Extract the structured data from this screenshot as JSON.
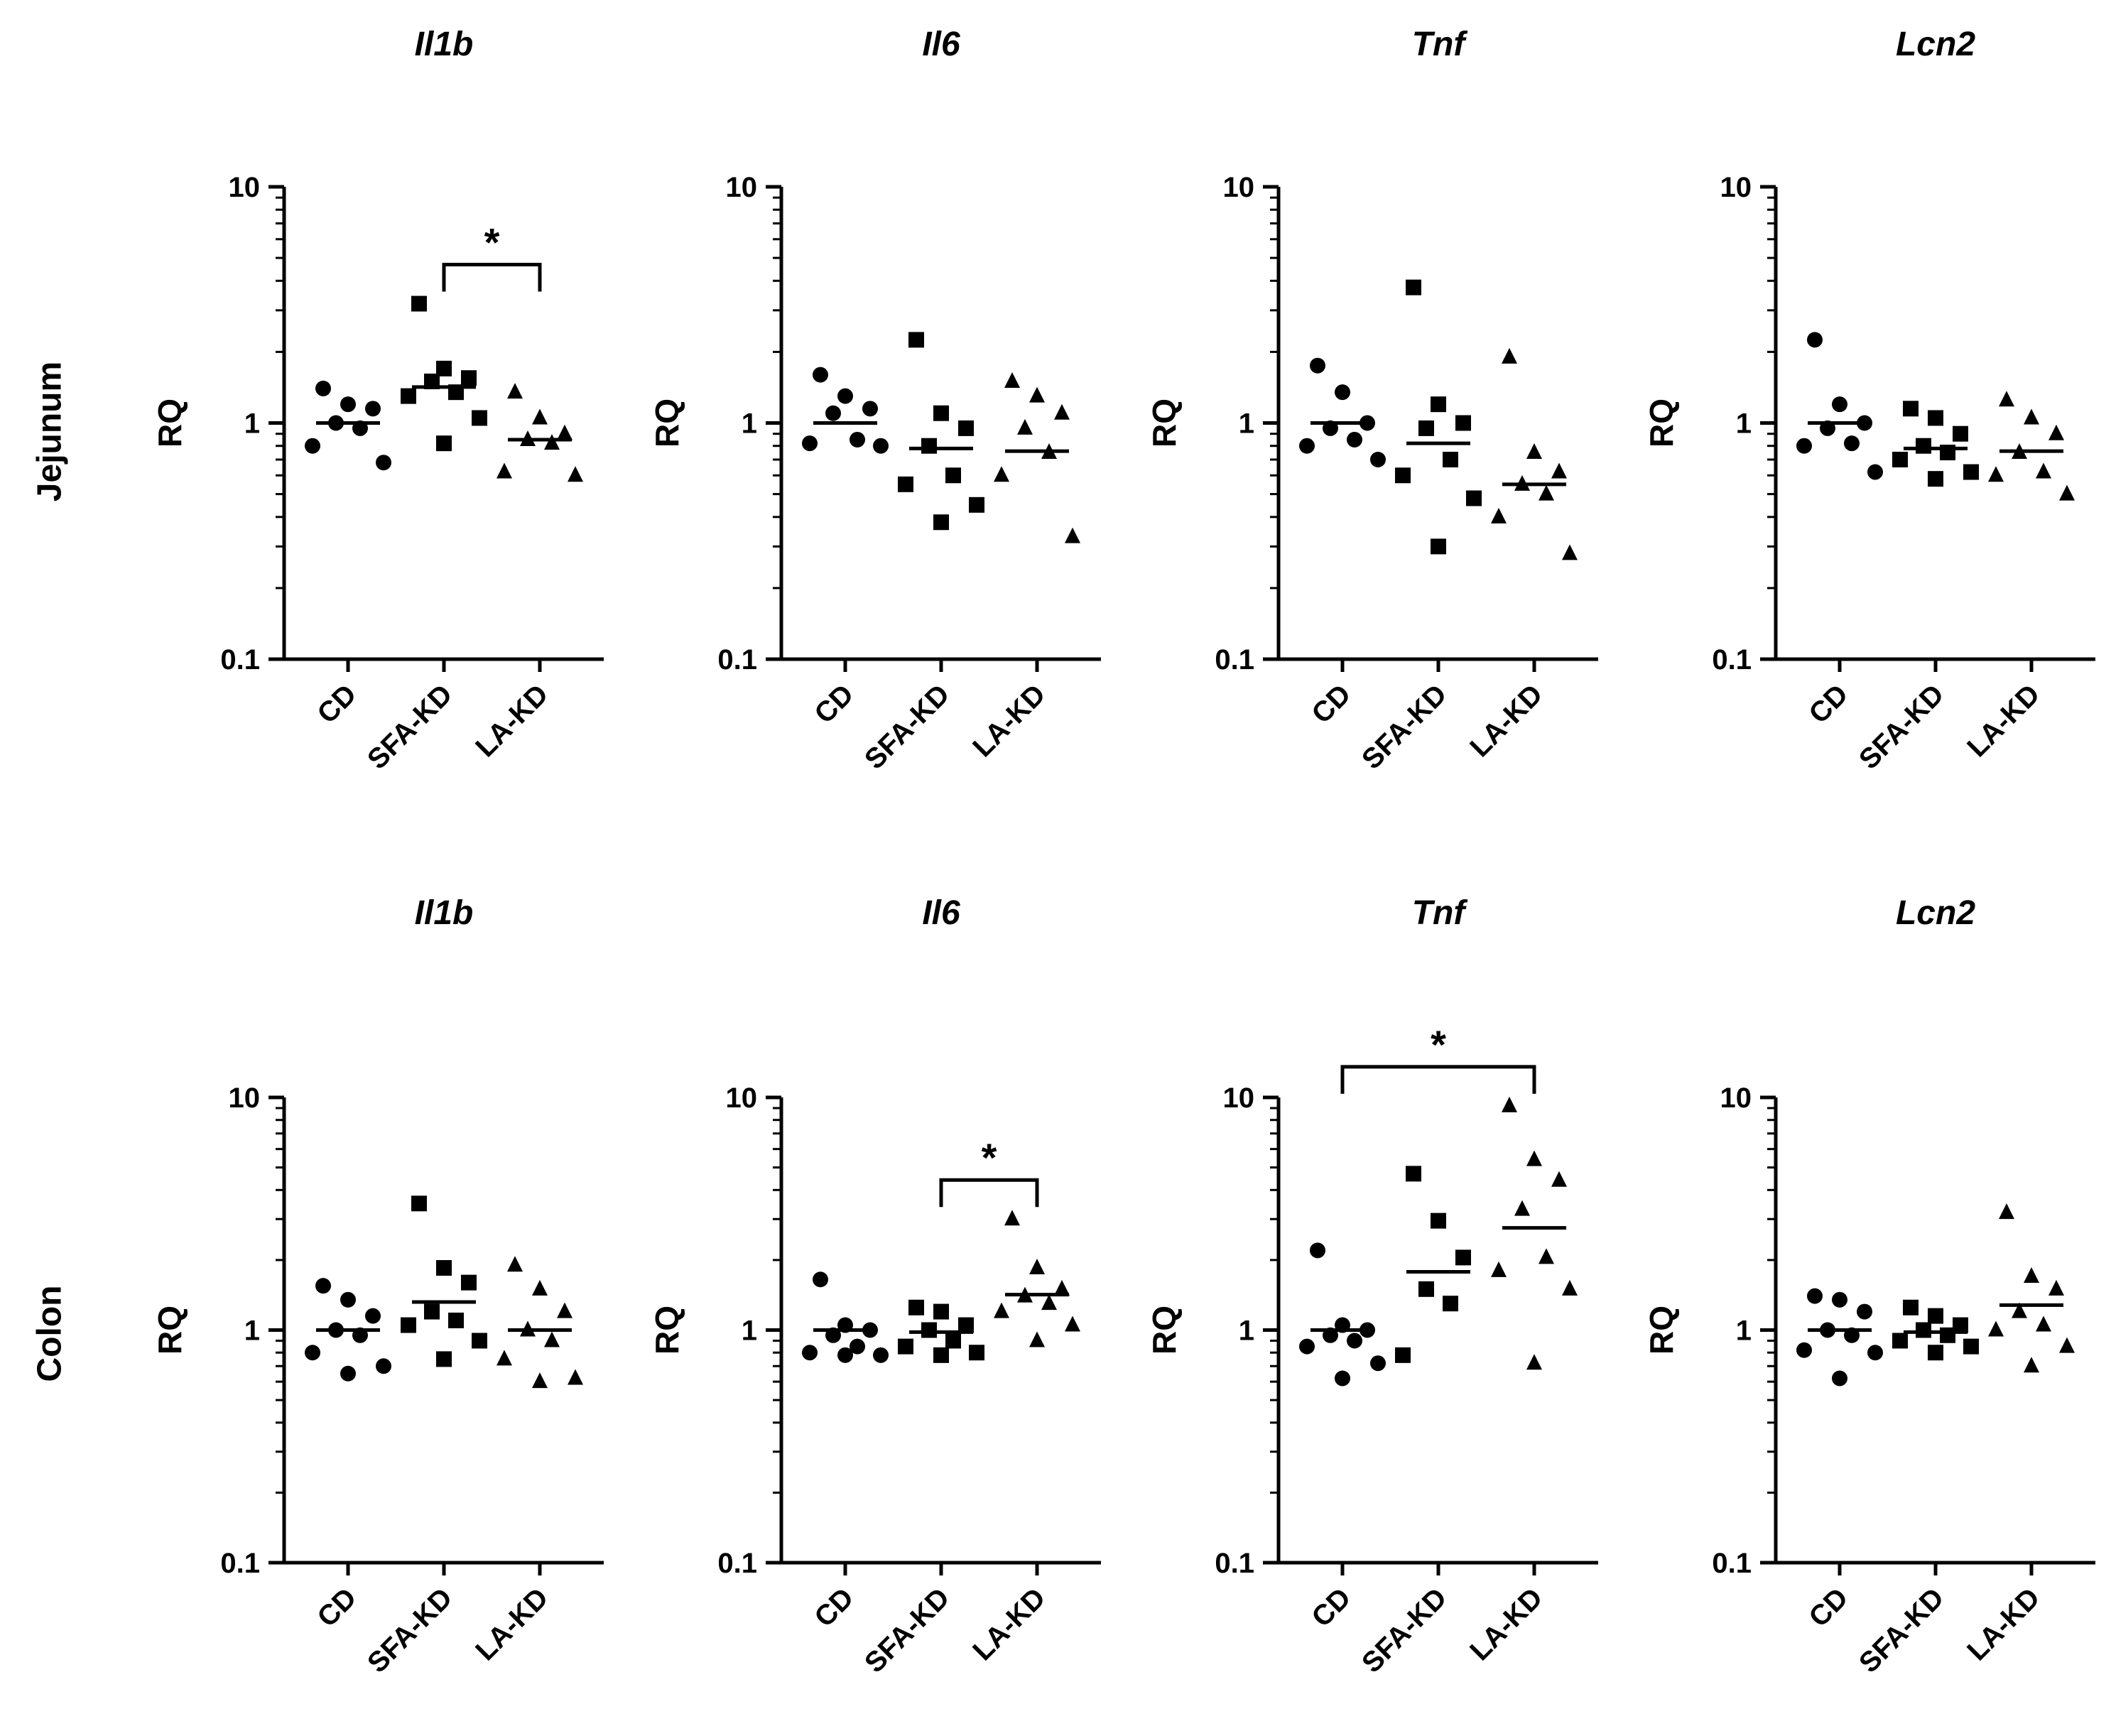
{
  "rows": [
    "Jejunum",
    "Colon"
  ],
  "ylabel": "RQ",
  "groups": [
    "CD",
    "SFA-KD",
    "LA-KD"
  ],
  "markers": [
    "circle",
    "square",
    "triangle"
  ],
  "yticks": [
    "0.1",
    "1",
    "10"
  ],
  "chart_data": [
    {
      "type": "scatter",
      "row": "Jejunum",
      "title": "Il1b",
      "xlabel": "",
      "ylabel": "RQ",
      "yscale": "log",
      "ylim": [
        0.1,
        10
      ],
      "categories": [
        "CD",
        "SFA-KD",
        "LA-KD"
      ],
      "series": [
        {
          "name": "CD",
          "marker": "circle",
          "values": [
            1.4,
            1.2,
            1.15,
            1.0,
            0.95,
            0.8,
            0.68
          ],
          "mean": 1.0
        },
        {
          "name": "SFA-KD",
          "marker": "square",
          "values": [
            3.2,
            1.7,
            1.55,
            1.5,
            1.35,
            1.3,
            1.05,
            0.82
          ],
          "mean": 1.42
        },
        {
          "name": "LA-KD",
          "marker": "triangle",
          "values": [
            1.35,
            1.05,
            0.9,
            0.85,
            0.82,
            0.62,
            0.6
          ],
          "mean": 0.85
        }
      ],
      "significance": [
        {
          "from": "SFA-KD",
          "to": "LA-KD",
          "label": "*"
        }
      ]
    },
    {
      "type": "scatter",
      "row": "Jejunum",
      "title": "Il6",
      "xlabel": "",
      "ylabel": "RQ",
      "yscale": "log",
      "ylim": [
        0.1,
        10
      ],
      "categories": [
        "CD",
        "SFA-KD",
        "LA-KD"
      ],
      "series": [
        {
          "name": "CD",
          "marker": "circle",
          "values": [
            1.6,
            1.3,
            1.15,
            1.1,
            0.85,
            0.82,
            0.8
          ],
          "mean": 1.0
        },
        {
          "name": "SFA-KD",
          "marker": "square",
          "values": [
            2.25,
            1.1,
            0.95,
            0.8,
            0.6,
            0.55,
            0.45,
            0.38
          ],
          "mean": 0.78
        },
        {
          "name": "LA-KD",
          "marker": "triangle",
          "values": [
            1.5,
            1.3,
            1.1,
            0.95,
            0.75,
            0.6,
            0.33
          ],
          "mean": 0.76
        }
      ],
      "significance": []
    },
    {
      "type": "scatter",
      "row": "Jejunum",
      "title": "Tnf",
      "xlabel": "",
      "ylabel": "RQ",
      "yscale": "log",
      "ylim": [
        0.1,
        10
      ],
      "categories": [
        "CD",
        "SFA-KD",
        "LA-KD"
      ],
      "series": [
        {
          "name": "CD",
          "marker": "circle",
          "values": [
            1.75,
            1.35,
            1.0,
            0.95,
            0.85,
            0.8,
            0.7
          ],
          "mean": 1.0
        },
        {
          "name": "SFA-KD",
          "marker": "square",
          "values": [
            3.75,
            1.2,
            1.0,
            0.95,
            0.7,
            0.6,
            0.48,
            0.3
          ],
          "mean": 0.82
        },
        {
          "name": "LA-KD",
          "marker": "triangle",
          "values": [
            1.9,
            0.75,
            0.62,
            0.55,
            0.5,
            0.4,
            0.28
          ],
          "mean": 0.55
        }
      ],
      "significance": []
    },
    {
      "type": "scatter",
      "row": "Jejunum",
      "title": "Lcn2",
      "xlabel": "",
      "ylabel": "RQ",
      "yscale": "log",
      "ylim": [
        0.1,
        10
      ],
      "categories": [
        "CD",
        "SFA-KD",
        "LA-KD"
      ],
      "series": [
        {
          "name": "CD",
          "marker": "circle",
          "values": [
            2.25,
            1.2,
            1.0,
            0.95,
            0.82,
            0.8,
            0.62
          ],
          "mean": 1.0
        },
        {
          "name": "SFA-KD",
          "marker": "square",
          "values": [
            1.15,
            1.05,
            0.9,
            0.8,
            0.75,
            0.7,
            0.62,
            0.58
          ],
          "mean": 0.78
        },
        {
          "name": "LA-KD",
          "marker": "triangle",
          "values": [
            1.25,
            1.05,
            0.9,
            0.75,
            0.62,
            0.6,
            0.5
          ],
          "mean": 0.76
        }
      ],
      "significance": []
    },
    {
      "type": "scatter",
      "row": "Colon",
      "title": "Il1b",
      "xlabel": "",
      "ylabel": "RQ",
      "yscale": "log",
      "ylim": [
        0.1,
        10
      ],
      "categories": [
        "CD",
        "SFA-KD",
        "LA-KD"
      ],
      "series": [
        {
          "name": "CD",
          "marker": "circle",
          "values": [
            1.55,
            1.35,
            1.15,
            1.0,
            0.95,
            0.8,
            0.7,
            0.65
          ],
          "mean": 1.0
        },
        {
          "name": "SFA-KD",
          "marker": "square",
          "values": [
            3.5,
            1.85,
            1.6,
            1.2,
            1.1,
            1.05,
            0.9,
            0.75
          ],
          "mean": 1.32
        },
        {
          "name": "LA-KD",
          "marker": "triangle",
          "values": [
            1.9,
            1.5,
            1.2,
            1.0,
            0.9,
            0.75,
            0.62,
            0.6
          ],
          "mean": 1.0
        }
      ],
      "significance": []
    },
    {
      "type": "scatter",
      "row": "Colon",
      "title": "Il6",
      "xlabel": "",
      "ylabel": "RQ",
      "yscale": "log",
      "ylim": [
        0.1,
        10
      ],
      "categories": [
        "CD",
        "SFA-KD",
        "LA-KD"
      ],
      "series": [
        {
          "name": "CD",
          "marker": "circle",
          "values": [
            1.65,
            1.05,
            1.0,
            0.95,
            0.85,
            0.8,
            0.78,
            0.78
          ],
          "mean": 1.0
        },
        {
          "name": "SFA-KD",
          "marker": "square",
          "values": [
            1.25,
            1.2,
            1.05,
            1.0,
            0.9,
            0.85,
            0.8,
            0.78
          ],
          "mean": 0.98
        },
        {
          "name": "LA-KD",
          "marker": "triangle",
          "values": [
            3.0,
            1.85,
            1.5,
            1.4,
            1.3,
            1.2,
            1.05,
            0.9
          ],
          "mean": 1.42
        }
      ],
      "significance": [
        {
          "from": "SFA-KD",
          "to": "LA-KD",
          "label": "*"
        }
      ]
    },
    {
      "type": "scatter",
      "row": "Colon",
      "title": "Tnf",
      "xlabel": "",
      "ylabel": "RQ",
      "yscale": "log",
      "ylim": [
        0.1,
        10
      ],
      "categories": [
        "CD",
        "SFA-KD",
        "LA-KD"
      ],
      "series": [
        {
          "name": "CD",
          "marker": "circle",
          "values": [
            2.2,
            1.05,
            1.0,
            0.95,
            0.9,
            0.85,
            0.72,
            0.62
          ],
          "mean": 1.0
        },
        {
          "name": "SFA-KD",
          "marker": "square",
          "values": [
            4.7,
            2.95,
            2.05,
            1.5,
            1.3,
            0.78
          ],
          "mean": 1.78
        },
        {
          "name": "LA-KD",
          "marker": "triangle",
          "values": [
            9.2,
            5.4,
            4.4,
            3.3,
            2.05,
            1.8,
            1.5,
            0.72
          ],
          "mean": 2.75
        }
      ],
      "significance": [
        {
          "from": "CD",
          "to": "LA-KD",
          "label": "*"
        }
      ]
    },
    {
      "type": "scatter",
      "row": "Colon",
      "title": "Lcn2",
      "xlabel": "",
      "ylabel": "RQ",
      "yscale": "log",
      "ylim": [
        0.1,
        10
      ],
      "categories": [
        "CD",
        "SFA-KD",
        "LA-KD"
      ],
      "series": [
        {
          "name": "CD",
          "marker": "circle",
          "values": [
            1.4,
            1.35,
            1.2,
            1.0,
            0.95,
            0.82,
            0.8,
            0.62
          ],
          "mean": 1.0
        },
        {
          "name": "SFA-KD",
          "marker": "square",
          "values": [
            1.25,
            1.15,
            1.05,
            1.0,
            0.95,
            0.9,
            0.85,
            0.8
          ],
          "mean": 0.98
        },
        {
          "name": "LA-KD",
          "marker": "triangle",
          "values": [
            3.2,
            1.7,
            1.5,
            1.2,
            1.05,
            1.0,
            0.85,
            0.7
          ],
          "mean": 1.28
        }
      ],
      "significance": []
    }
  ]
}
